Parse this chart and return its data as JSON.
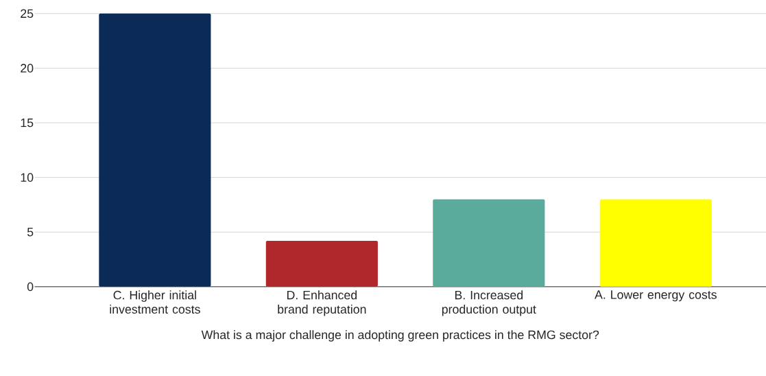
{
  "chart_data": {
    "type": "bar",
    "xlabel": "What is a major challenge in adopting green practices in the RMG sector?",
    "categories": [
      "C. Higher initial investment costs",
      "D. Enhanced brand reputation",
      "B. Increased production output",
      "A. Lower energy costs"
    ],
    "values": [
      25,
      4.2,
      8,
      8
    ],
    "colors": [
      "#0b2a55",
      "#b0282b",
      "#5aab9b",
      "#ffff00"
    ],
    "ylim": [
      0,
      25
    ],
    "yticks": [
      0,
      5,
      10,
      15,
      20,
      25
    ],
    "grid": "y"
  }
}
